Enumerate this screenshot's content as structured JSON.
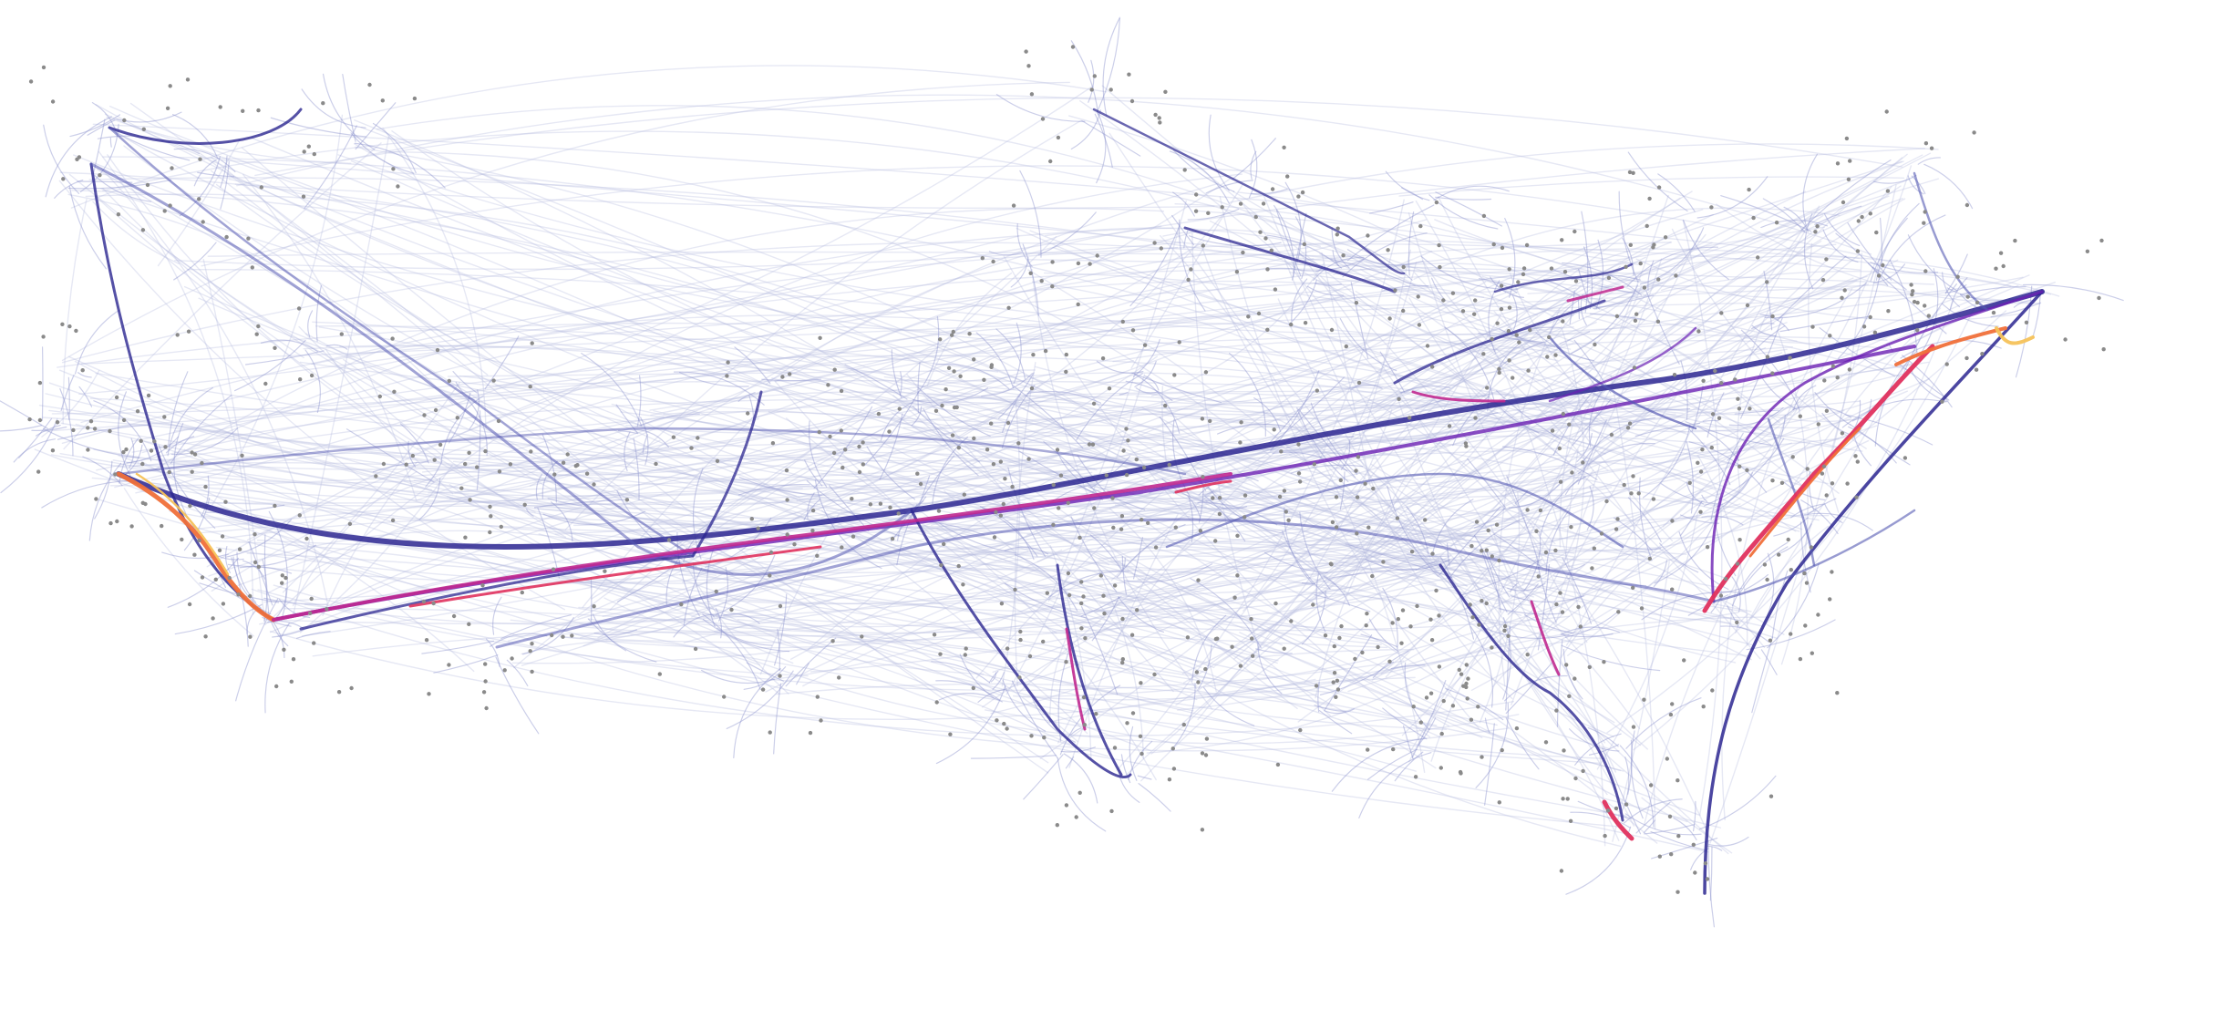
{
  "figure": {
    "title": "",
    "colors": {
      "background": "#ffffff",
      "edge_faint": "#b8bde0",
      "edge_light": "#8f95cf",
      "edge_mid": "#5458b2",
      "edge_strong": "#2b2690",
      "edge_bright": "#6a1fb3",
      "hot_1": "#c0288f",
      "hot_2": "#e0325e",
      "hot_3": "#f0703a",
      "hot_4": "#f6c25a",
      "node": "#8a8a8a"
    }
  }
}
